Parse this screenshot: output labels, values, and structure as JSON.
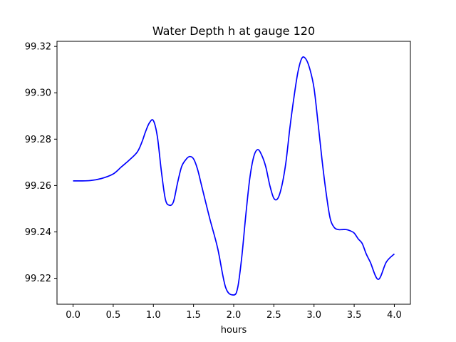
{
  "chart_data": {
    "type": "line",
    "title": "Water Depth h at gauge 120",
    "xlabel": "hours",
    "ylabel": "",
    "xlim": [
      -0.2,
      4.2
    ],
    "ylim": [
      99.2088,
      99.3222
    ],
    "xticks": [
      0.0,
      0.5,
      1.0,
      1.5,
      2.0,
      2.5,
      3.0,
      3.5,
      4.0
    ],
    "xtick_labels": [
      "0.0",
      "0.5",
      "1.0",
      "1.5",
      "2.0",
      "2.5",
      "3.0",
      "3.5",
      "4.0"
    ],
    "yticks": [
      99.22,
      99.24,
      99.26,
      99.28,
      99.3,
      99.32
    ],
    "ytick_labels": [
      "99.22",
      "99.24",
      "99.26",
      "99.28",
      "99.30",
      "99.32"
    ],
    "grid": false,
    "series": [
      {
        "color": "#0000ff",
        "x": [
          0.0,
          0.2,
          0.35,
          0.5,
          0.6,
          0.7,
          0.8,
          0.86,
          0.9,
          0.95,
          1.0,
          1.05,
          1.1,
          1.15,
          1.2,
          1.25,
          1.3,
          1.35,
          1.4,
          1.45,
          1.5,
          1.55,
          1.6,
          1.7,
          1.8,
          1.9,
          2.0,
          2.05,
          2.1,
          2.15,
          2.2,
          2.25,
          2.3,
          2.35,
          2.4,
          2.45,
          2.5,
          2.55,
          2.6,
          2.65,
          2.7,
          2.75,
          2.8,
          2.85,
          2.9,
          2.95,
          3.0,
          3.05,
          3.1,
          3.15,
          3.2,
          3.25,
          3.3,
          3.35,
          3.4,
          3.45,
          3.5,
          3.55,
          3.6,
          3.65,
          3.7,
          3.8,
          3.9,
          4.0
        ],
        "y": [
          99.262,
          99.2621,
          99.263,
          99.265,
          99.268,
          99.271,
          99.2745,
          99.279,
          99.283,
          99.287,
          99.288,
          99.281,
          99.266,
          99.254,
          99.2515,
          99.253,
          99.261,
          99.268,
          99.271,
          99.2725,
          99.2715,
          99.267,
          99.26,
          99.246,
          99.233,
          99.216,
          99.2128,
          99.216,
          99.229,
          99.247,
          99.263,
          99.2725,
          99.2755,
          99.273,
          99.268,
          99.26,
          99.2545,
          99.2545,
          99.26,
          99.27,
          99.285,
          99.298,
          99.309,
          99.315,
          99.3145,
          99.31,
          99.302,
          99.287,
          99.271,
          99.257,
          99.246,
          99.242,
          99.241,
          99.241,
          99.241,
          99.2405,
          99.2395,
          99.237,
          99.235,
          99.2305,
          99.227,
          99.2195,
          99.227,
          99.2305
        ]
      }
    ]
  }
}
